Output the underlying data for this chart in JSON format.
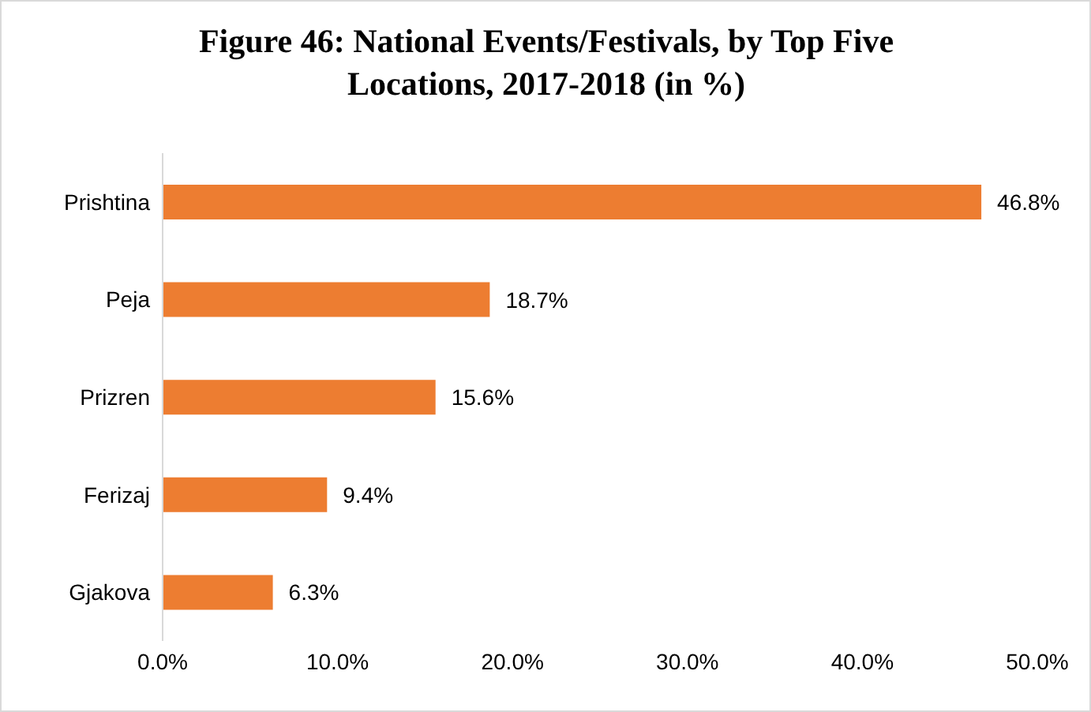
{
  "chart_data": {
    "type": "bar",
    "orientation": "horizontal",
    "title": "Figure 46: National Events/Festivals, by Top Five Locations, 2017-2018 (in %)",
    "categories": [
      "Prishtina",
      "Peja",
      "Prizren",
      "Ferizaj",
      "Gjakova"
    ],
    "values": [
      46.8,
      18.7,
      15.6,
      9.4,
      6.3
    ],
    "value_labels": [
      "46.8%",
      "18.7%",
      "15.6%",
      "9.4%",
      "6.3%"
    ],
    "color": "#ed7d31",
    "xlim": [
      0,
      50
    ],
    "xticks": [
      {
        "value": 0,
        "label": "0.0%"
      },
      {
        "value": 10,
        "label": "10.0%"
      },
      {
        "value": 20,
        "label": "20.0%"
      },
      {
        "value": 30,
        "label": "30.0%"
      },
      {
        "value": 40,
        "label": "40.0%"
      },
      {
        "value": 50,
        "label": "50.0%"
      }
    ],
    "grid": false,
    "legend": false
  }
}
